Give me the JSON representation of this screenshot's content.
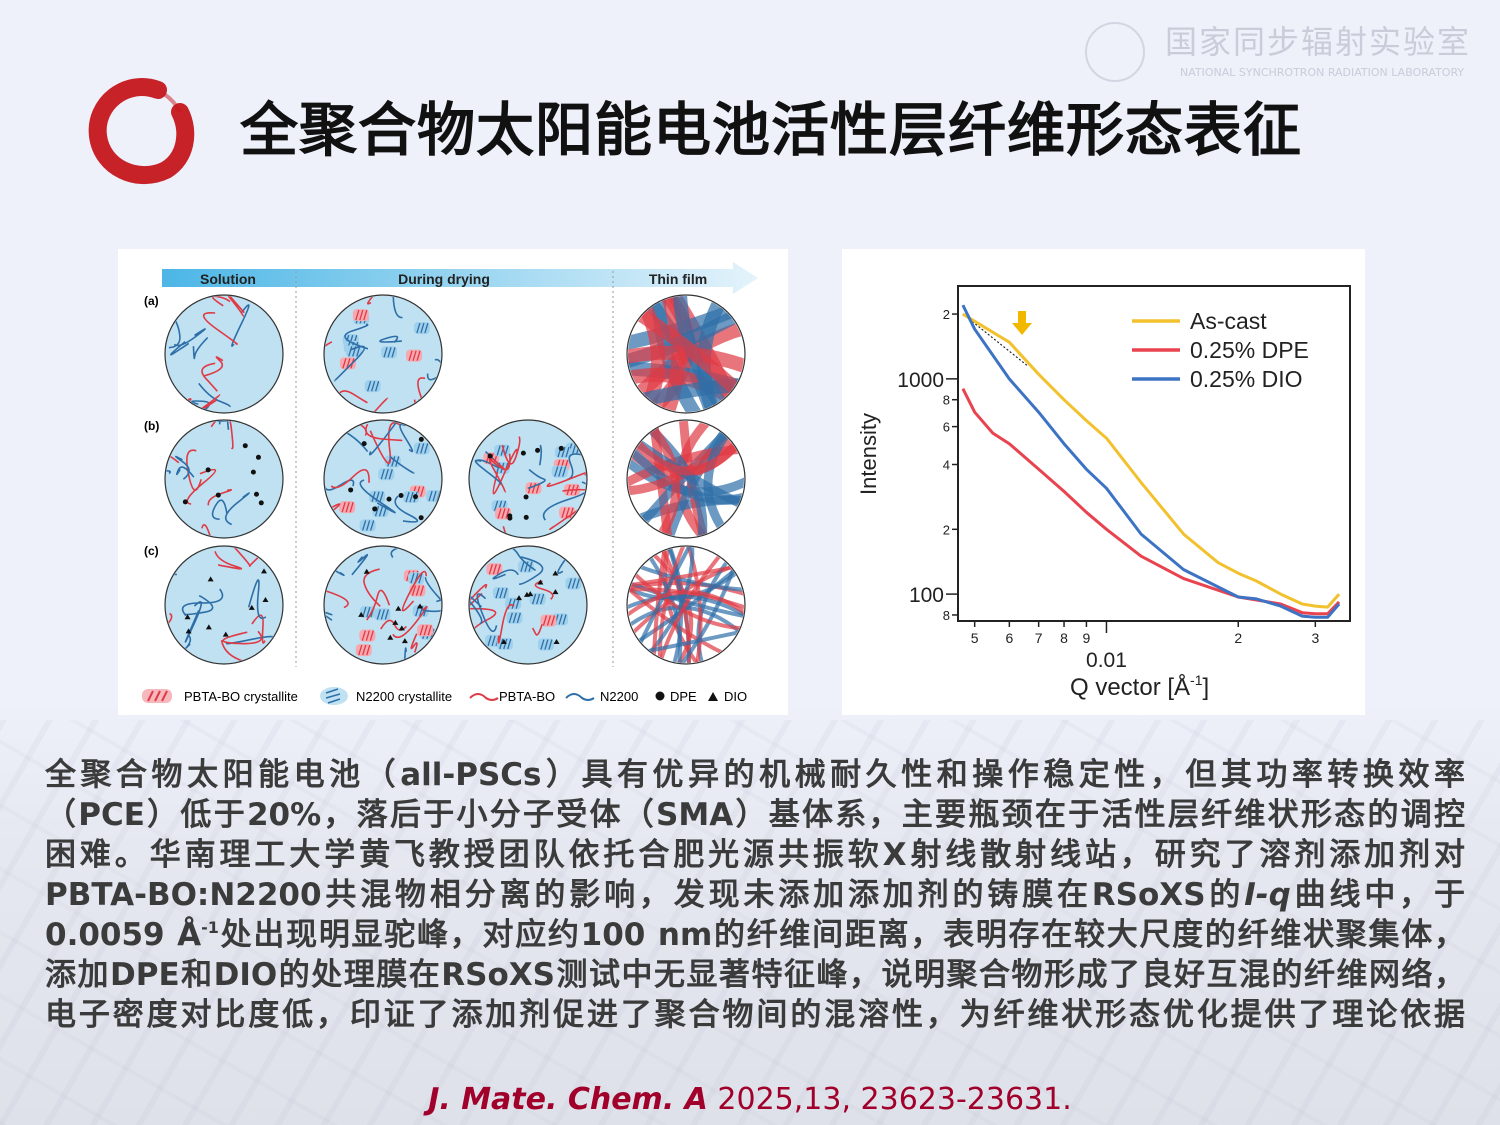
{
  "slide": {
    "title": "全聚合物太阳能电池活性层纤维形态表征",
    "watermark": {
      "cn": "国家同步辐射实验室",
      "en": "NATIONAL SYNCHROTRON RADIATION LABORATORY"
    }
  },
  "left_figure": {
    "stages": [
      "Solution",
      "During drying",
      "Thin film"
    ],
    "rows": [
      "(a)",
      "(b)",
      "(c)"
    ],
    "legend": [
      "PBTA-BO crystallite",
      "N2200 crystallite",
      "PBTA-BO",
      "N2200",
      "DPE",
      "DIO"
    ],
    "colors": {
      "pbta": "#e03a45",
      "n2200": "#2f6fa8",
      "circle": "#bfe1f2"
    }
  },
  "chart_data": {
    "type": "line",
    "xlabel": "Q vector [Å-1]",
    "xlabel_main": "Q vector [Å",
    "xlabel_sup": "-1",
    "xlabel_end": "]",
    "ylabel": "Intensity",
    "xscale": "log",
    "yscale": "log",
    "xlim": [
      0.00458,
      0.036
    ],
    "ylim": [
      75,
      2700
    ],
    "xticks": [
      {
        "v": 0.005,
        "l": "5"
      },
      {
        "v": 0.006,
        "l": "6"
      },
      {
        "v": 0.007,
        "l": "7"
      },
      {
        "v": 0.008,
        "l": "8"
      },
      {
        "v": 0.009,
        "l": "9"
      },
      {
        "v": 0.01,
        "l": "0.01"
      },
      {
        "v": 0.02,
        "l": "2"
      },
      {
        "v": 0.03,
        "l": "3"
      }
    ],
    "yticks": [
      {
        "v": 80,
        "l": "8"
      },
      {
        "v": 100,
        "l": "100"
      },
      {
        "v": 200,
        "l": "2"
      },
      {
        "v": 400,
        "l": "4"
      },
      {
        "v": 600,
        "l": "6"
      },
      {
        "v": 800,
        "l": "8"
      },
      {
        "v": 1000,
        "l": "1000"
      },
      {
        "v": 2000,
        "l": "2"
      }
    ],
    "legend_position": "top-right",
    "annotation": "arrow marking hump at ~0.0059 Å-1 on As-cast",
    "series": [
      {
        "name": "As-cast",
        "color": "#f2c12e",
        "x": [
          0.0047,
          0.005,
          0.006,
          0.007,
          0.008,
          0.009,
          0.01,
          0.012,
          0.015,
          0.018,
          0.02,
          0.022,
          0.025,
          0.028,
          0.03,
          0.032,
          0.034
        ],
        "y": [
          2000,
          1850,
          1480,
          1050,
          800,
          640,
          530,
          330,
          190,
          140,
          125,
          115,
          100,
          90,
          88,
          87,
          100
        ]
      },
      {
        "name": "0.25% DPE",
        "color": "#e8434f",
        "x": [
          0.0047,
          0.005,
          0.0055,
          0.006,
          0.007,
          0.008,
          0.009,
          0.01,
          0.012,
          0.015,
          0.02,
          0.025,
          0.028,
          0.03,
          0.032,
          0.034
        ],
        "y": [
          900,
          700,
          560,
          500,
          380,
          300,
          240,
          200,
          150,
          118,
          97,
          90,
          82,
          81,
          81,
          92
        ]
      },
      {
        "name": "0.25% DIO",
        "color": "#3d73c4",
        "x": [
          0.0047,
          0.005,
          0.006,
          0.007,
          0.008,
          0.009,
          0.01,
          0.012,
          0.015,
          0.02,
          0.022,
          0.025,
          0.028,
          0.03,
          0.032,
          0.034
        ],
        "y": [
          2200,
          1700,
          1000,
          700,
          500,
          380,
          310,
          190,
          130,
          97,
          95,
          88,
          79,
          78,
          78,
          90
        ]
      }
    ]
  },
  "body": {
    "lines": [
      "全聚合物太阳能电池（all-PSCs）具有优异的机械耐久性和操作稳定性，但其功率转换效率",
      "（PCE）低于20%，落后于小分子受体（SMA）基体系，主要瓶颈在于活性层纤维状形态的调控",
      "困难。华南理工大学黄飞教授团队依托合肥光源共振软X射线散射线站，研究了溶剂添加剂对"
    ],
    "line4": {
      "a": "PBTA-BO:N2200共混物相分离的影响，发现未添加添加剂的铸膜在RSoXS的",
      "italic": "I-q",
      "b": "曲线中，于"
    },
    "line5": {
      "a": "0.0059 Å",
      "sup": "-1",
      "b": "处出现明显驼峰，对应约100 nm的纤维间距离，表明存在较大尺度的纤维状聚集体，"
    },
    "lines_end": [
      "添加DPE和DIO的处理膜在RSoXS测试中无显著特征峰，说明聚合物形成了良好互混的纤维网络，",
      "电子密度对比度低，印证了添加剂促进了聚合物间的混溶性，为纤维状形态优化提供了理论依据"
    ]
  },
  "citation": {
    "journal": "J. Mate. Chem. A",
    "details": " 2025,13, 23623-23631."
  }
}
